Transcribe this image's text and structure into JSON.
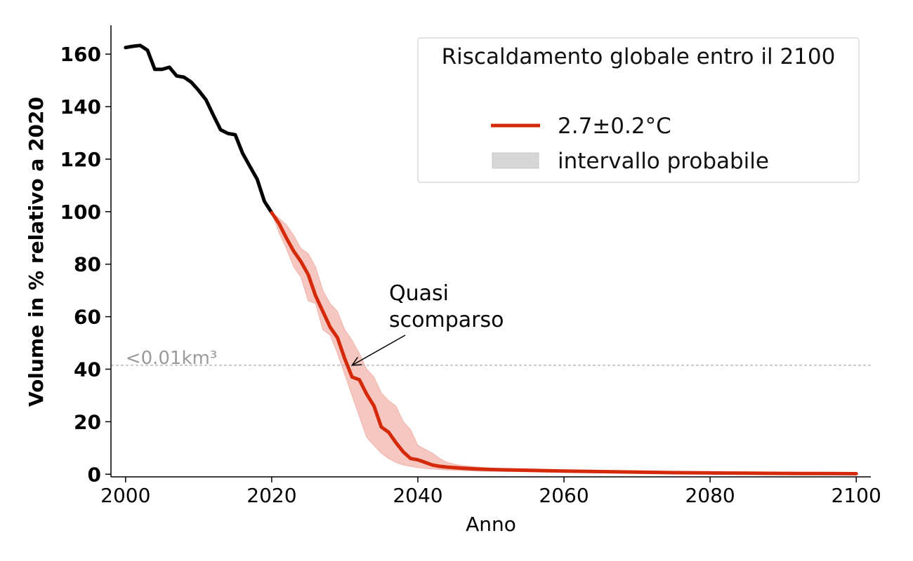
{
  "chart_data": {
    "type": "line",
    "xlabel": "Anno",
    "ylabel": "Volume in % relativo a 2020",
    "xlim": [
      1998,
      2102
    ],
    "ylim": [
      -1,
      171
    ],
    "xticks": [
      2000,
      2020,
      2040,
      2060,
      2080,
      2100
    ],
    "yticks": [
      0,
      20,
      40,
      60,
      80,
      100,
      120,
      140,
      160
    ],
    "grid": false,
    "legend": {
      "title": "Riscaldamento globale entro il 2100",
      "placement": "top-right",
      "entries": [
        {
          "label": "2.7±0.2°C",
          "kind": "line",
          "color": "#d42a0a"
        },
        {
          "label": "intervallo probabile",
          "kind": "patch",
          "color": "#d6d6d6"
        }
      ]
    },
    "reference_line": {
      "y": 41.5,
      "label": "<0.01km³",
      "color": "#b8b8b8"
    },
    "annotation": {
      "text_lines": [
        "Quasi",
        "scomparso"
      ],
      "point": [
        2031,
        41.5
      ],
      "text_pos": [
        2036,
        57
      ]
    },
    "series": [
      {
        "role": "observed",
        "color": "#000000",
        "x": [
          2000,
          2001,
          2002,
          2003,
          2004,
          2005,
          2006,
          2007,
          2008,
          2009,
          2010,
          2011,
          2012,
          2013,
          2014,
          2015,
          2016,
          2017,
          2018,
          2019,
          2020
        ],
        "y": [
          162.5,
          163,
          163.3,
          161.5,
          154.2,
          154.2,
          155,
          151.7,
          151.2,
          149.3,
          146.2,
          142.6,
          136.8,
          131.2,
          129.8,
          129.3,
          122.3,
          117.3,
          112.4,
          103.9,
          99.6
        ]
      },
      {
        "role": "projection",
        "name": "2.7±0.2°C",
        "color": "#d42a0a",
        "x": [
          2020,
          2021,
          2022,
          2023,
          2024,
          2025,
          2026,
          2027,
          2028,
          2029,
          2030,
          2031,
          2032,
          2033,
          2034,
          2035,
          2036,
          2037,
          2038,
          2039,
          2040,
          2041,
          2042,
          2043,
          2044,
          2045,
          2046,
          2048,
          2050,
          2055,
          2060,
          2065,
          2070,
          2075,
          2080,
          2085,
          2090,
          2095,
          2100
        ],
        "y": [
          99.6,
          95.5,
          90,
          85,
          81,
          76,
          68,
          62,
          56,
          52,
          44,
          37,
          36,
          30.5,
          26,
          18,
          16,
          12,
          8.5,
          6,
          5.5,
          4.5,
          3.5,
          3,
          2.7,
          2.5,
          2.3,
          2,
          1.8,
          1.5,
          1.2,
          1,
          0.8,
          0.6,
          0.5,
          0.4,
          0.3,
          0.25,
          0.2
        ]
      },
      {
        "role": "likely_range_upper",
        "name": "intervallo probabile",
        "color": "#f5c7c0",
        "x": [
          2020,
          2021,
          2022,
          2023,
          2024,
          2025,
          2026,
          2027,
          2028,
          2029,
          2030,
          2031,
          2032,
          2033,
          2034,
          2035,
          2036,
          2037,
          2038,
          2039,
          2040,
          2041,
          2042,
          2043,
          2044,
          2045,
          2046,
          2048,
          2050,
          2055,
          2060,
          2065,
          2070,
          2075,
          2080,
          2085,
          2090,
          2095,
          2100
        ],
        "y": [
          99.6,
          97.5,
          95,
          91,
          86,
          84,
          79,
          70,
          65,
          62,
          55,
          51,
          46,
          40,
          37,
          31,
          28,
          26,
          20,
          17,
          11,
          9.5,
          8,
          6,
          4.5,
          3.8,
          3.3,
          2.8,
          2.3,
          1.8,
          1.4,
          1.2,
          1,
          0.8,
          0.7,
          0.6,
          0.5,
          0.4,
          0.3
        ]
      },
      {
        "role": "likely_range_lower",
        "color": "#f5c7c0",
        "x": [
          2020,
          2021,
          2022,
          2023,
          2024,
          2025,
          2026,
          2027,
          2028,
          2029,
          2030,
          2031,
          2032,
          2033,
          2034,
          2035,
          2036,
          2037,
          2038,
          2039,
          2040,
          2041,
          2042,
          2043,
          2044,
          2045,
          2046,
          2048,
          2050,
          2055,
          2060,
          2065,
          2070,
          2075,
          2080,
          2085,
          2090,
          2095,
          2100
        ],
        "y": [
          99.6,
          92,
          86,
          79,
          75,
          66,
          65,
          55,
          53,
          46,
          38,
          30,
          22,
          14,
          11,
          8,
          6,
          4.5,
          3.5,
          3,
          2.5,
          2.2,
          2,
          1.8,
          1.6,
          1.5,
          1.4,
          1.2,
          1.1,
          0.9,
          0.7,
          0.6,
          0.5,
          0.4,
          0.3,
          0.25,
          0.2,
          0.15,
          0.1
        ]
      }
    ]
  }
}
